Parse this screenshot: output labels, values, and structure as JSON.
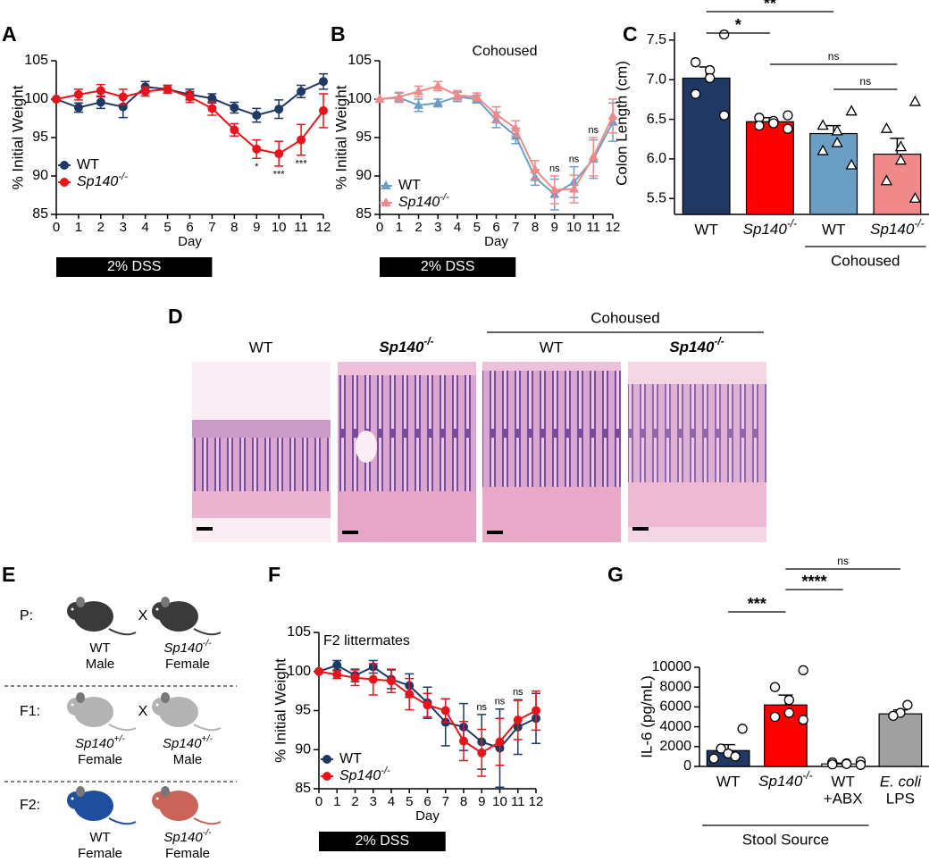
{
  "chart_data": [
    {
      "panel": "A",
      "type": "line",
      "xlabel": "Day",
      "ylabel": "% Initial Weight",
      "x": [
        0,
        1,
        2,
        3,
        4,
        5,
        6,
        7,
        8,
        9,
        10,
        11,
        12
      ],
      "xlim": [
        0,
        12
      ],
      "xticks": [
        0,
        1,
        2,
        3,
        4,
        5,
        6,
        7,
        8,
        9,
        10,
        11,
        12
      ],
      "ylim": [
        85,
        105
      ],
      "yticks": [
        85,
        90,
        95,
        100,
        105
      ],
      "legend": "lower left",
      "series": [
        {
          "name": "WT",
          "color": "#1f3864",
          "marker": "circle",
          "values": [
            100,
            98.9,
            99.6,
            99.0,
            101.6,
            101.3,
            100.6,
            100.1,
            98.9,
            97.9,
            98.7,
            101.0,
            102.3
          ],
          "errors": [
            0,
            0.6,
            0.8,
            1.4,
            0.7,
            0.5,
            0.7,
            0.6,
            0.7,
            0.9,
            1.2,
            0.8,
            1.0
          ]
        },
        {
          "name": "Sp140-/-",
          "color": "#e8141b",
          "marker": "circle",
          "values": [
            100,
            100.6,
            101.1,
            100.3,
            101.0,
            101.3,
            100.3,
            98.8,
            96.0,
            93.5,
            92.9,
            94.7,
            98.5
          ],
          "errors": [
            0,
            0.7,
            0.8,
            1.0,
            0.6,
            0.5,
            0.7,
            0.9,
            0.8,
            1.2,
            1.6,
            2.0,
            2.2
          ]
        }
      ],
      "annotations": [
        {
          "x": 9,
          "text": "*"
        },
        {
          "x": 10,
          "text": "***"
        },
        {
          "x": 11,
          "text": "***"
        }
      ],
      "annotation_placement": "below",
      "treatment": {
        "label": "2% DSS",
        "start": 0,
        "end": 7
      }
    },
    {
      "panel": "B",
      "type": "line",
      "subtitle": "Cohoused",
      "xlabel": "Day",
      "ylabel": "% Initial Weight",
      "x": [
        0,
        1,
        2,
        3,
        4,
        5,
        6,
        7,
        8,
        9,
        10,
        11,
        12
      ],
      "xlim": [
        0,
        12
      ],
      "xticks": [
        0,
        1,
        2,
        3,
        4,
        5,
        6,
        7,
        8,
        9,
        10,
        11,
        12
      ],
      "ylim": [
        85,
        105
      ],
      "yticks": [
        85,
        90,
        95,
        100,
        105
      ],
      "legend": "lower left",
      "series": [
        {
          "name": "WT",
          "color": "#6b9ec4",
          "marker": "triangle",
          "values": [
            100,
            100.2,
            99.2,
            99.5,
            100.3,
            100.0,
            97.3,
            95.2,
            89.8,
            87.6,
            89.2,
            92.2,
            97.0
          ],
          "errors": [
            0,
            0.6,
            0.8,
            0.5,
            0.6,
            0.5,
            1.0,
            1.0,
            1.0,
            2.0,
            2.0,
            2.5,
            2.5
          ]
        },
        {
          "name": "Sp140-/-",
          "color": "#f08a8a",
          "marker": "triangle",
          "values": [
            100,
            100.3,
            101.0,
            101.7,
            100.5,
            100.3,
            98.0,
            96.2,
            90.8,
            88.2,
            88.3,
            92.5,
            97.8
          ],
          "errors": [
            0,
            0.6,
            0.7,
            0.6,
            0.6,
            0.5,
            1.0,
            1.0,
            1.2,
            1.8,
            1.8,
            2.5,
            2.2
          ]
        }
      ],
      "annotations": [
        {
          "x": 9,
          "text": "ns"
        },
        {
          "x": 10,
          "text": "ns"
        },
        {
          "x": 11,
          "text": "ns"
        }
      ],
      "annotation_placement": "above",
      "treatment": {
        "label": "2% DSS",
        "start": 0,
        "end": 7
      }
    },
    {
      "panel": "C",
      "type": "bar",
      "ylabel": "Colon Length (cm)",
      "categories": [
        "WT",
        "Sp140-/-",
        "WT",
        "Sp140-/-"
      ],
      "group_label": "Cohoused",
      "ylim": [
        5.3,
        7.6
      ],
      "yticks": [
        5.5,
        {
          "value": 6,
          "label": "6.0"
        },
        6.5,
        {
          "value": 7,
          "label": "7.0"
        },
        7.5
      ],
      "values": [
        7.02,
        6.47,
        6.32,
        6.06
      ],
      "errors": [
        0.14,
        0.05,
        0.1,
        0.2
      ],
      "colors": [
        "#1f3864",
        "#ff0000",
        "#6b9ec4",
        "#f08a8a"
      ],
      "markers": [
        "circle",
        "circle",
        "triangle",
        "triangle"
      ],
      "points": [
        [
          7.57,
          7.22,
          7.12,
          7.02,
          6.82,
          6.55
        ],
        [
          6.55,
          6.52,
          6.48,
          6.45,
          6.42,
          6.38
        ],
        [
          6.6,
          6.42,
          6.35,
          6.2,
          6.1,
          5.92
        ],
        [
          6.72,
          6.38,
          6.15,
          5.98,
          5.72,
          5.5
        ]
      ],
      "comparisons": [
        {
          "between": [
            0,
            1
          ],
          "label": "*"
        },
        {
          "between": [
            0,
            2
          ],
          "label": "**"
        },
        {
          "between": [
            1,
            3
          ],
          "label": "ns"
        },
        {
          "between": [
            2,
            3
          ],
          "label": "ns"
        }
      ]
    },
    {
      "panel": "F",
      "type": "line",
      "subtitle": "F2 littermates",
      "xlabel": "Day",
      "ylabel": "% Initial Weight",
      "x": [
        0,
        1,
        2,
        3,
        4,
        5,
        6,
        7,
        8,
        9,
        10,
        11,
        12
      ],
      "xlim": [
        0,
        12
      ],
      "xticks": [
        0,
        1,
        2,
        3,
        4,
        5,
        6,
        7,
        8,
        9,
        10,
        11,
        12
      ],
      "ylim": [
        85,
        105
      ],
      "yticks": [
        85,
        90,
        95,
        100,
        105
      ],
      "legend": "lower left",
      "series": [
        {
          "name": "WT",
          "color": "#1f3864",
          "marker": "circle",
          "values": [
            100,
            100.8,
            99.5,
            100.6,
            99.0,
            98.2,
            96.0,
            93.5,
            92.9,
            91.0,
            90.2,
            92.9,
            94.0
          ],
          "errors": [
            0,
            0.6,
            0.8,
            0.8,
            1.2,
            1.5,
            2.0,
            3.0,
            3.0,
            3.5,
            5.0,
            3.5,
            3.2
          ]
        },
        {
          "name": "Sp140-/-",
          "color": "#e8141b",
          "marker": "circle",
          "values": [
            100,
            99.6,
            99.2,
            99.0,
            98.8,
            97.1,
            95.7,
            95.0,
            91.1,
            89.6,
            91.0,
            93.8,
            95.0
          ],
          "errors": [
            0,
            0.5,
            1.0,
            2.0,
            1.5,
            2.0,
            1.5,
            1.5,
            2.5,
            3.0,
            3.0,
            2.5,
            2.5
          ]
        }
      ],
      "annotations": [
        {
          "x": 9,
          "text": "ns"
        },
        {
          "x": 10,
          "text": "ns"
        },
        {
          "x": 11,
          "text": "ns"
        }
      ],
      "annotation_placement": "above",
      "treatment": {
        "label": "2% DSS",
        "start": 0,
        "end": 7
      }
    },
    {
      "panel": "G",
      "type": "bar",
      "ylabel": "IL-6 (pg/mL)",
      "categories": [
        [
          "WT"
        ],
        [
          "Sp140-/-"
        ],
        [
          "WT",
          "+ABX"
        ],
        [
          "E. coli",
          "LPS"
        ]
      ],
      "group_label": "Stool Source",
      "ylim": [
        0,
        10000
      ],
      "yticks": [
        0,
        2000,
        4000,
        6000,
        8000,
        10000
      ],
      "values": [
        1600,
        6200,
        250,
        5300
      ],
      "errors": [
        600,
        1000,
        80,
        400
      ],
      "colors": [
        "#1f3864",
        "#ff0000",
        "#ffffff",
        "#a0a0a0"
      ],
      "markers": [
        "circle",
        "circle",
        "circle",
        "circle"
      ],
      "points": [
        [
          3800,
          1800,
          1300,
          1000,
          800
        ],
        [
          9700,
          8000,
          6700,
          5400,
          5000,
          4700
        ],
        [
          500,
          400,
          300,
          250,
          200,
          150
        ],
        [
          6200,
          5400,
          5100
        ]
      ],
      "comparisons": [
        {
          "between": [
            0,
            1
          ],
          "label": "***"
        },
        {
          "between": [
            1,
            2
          ],
          "label": "****"
        },
        {
          "between": [
            1,
            3
          ],
          "label": "ns"
        }
      ]
    }
  ],
  "histology": {
    "panel": "D",
    "group_label": "Cohoused",
    "images": [
      "WT",
      "Sp140-/-",
      "WT",
      "Sp140-/-"
    ]
  },
  "breeding": {
    "panel": "E",
    "generations": [
      {
        "label": "P:",
        "cross": "X",
        "left": {
          "genotype": "WT",
          "sex": "Male"
        },
        "right": {
          "genotype": "Sp140-/-",
          "sex": "Female"
        }
      },
      {
        "label": "F1:",
        "cross": "X",
        "left": {
          "genotype": "Sp140+/-",
          "sex": "Female"
        },
        "right": {
          "genotype": "Sp140+/-",
          "sex": "Male"
        }
      },
      {
        "label": "F2:",
        "left": {
          "genotype": "WT",
          "sex": "Female"
        },
        "right": {
          "genotype": "Sp140-/-",
          "sex": "Female"
        }
      }
    ]
  }
}
